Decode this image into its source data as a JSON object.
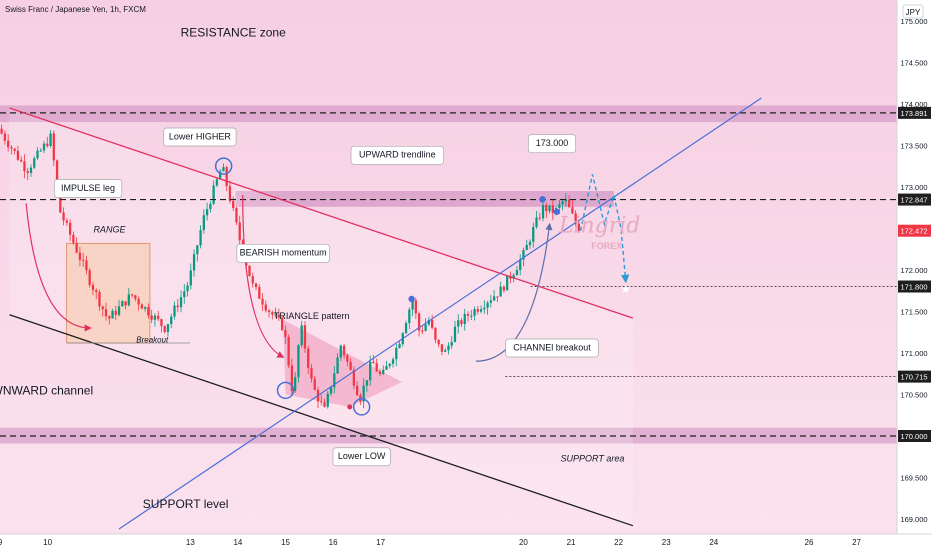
{
  "symbol_title": "Swiss Franc / Japanese Yen, 1h, FXCM",
  "currency": "JPY",
  "chart_data": {
    "type": "candlestick",
    "y_range": [
      168.82,
      175.25
    ],
    "x_range": [
      9.0,
      27.85
    ],
    "x_ticks": [
      {
        "v": 9,
        "label": "9"
      },
      {
        "v": 10,
        "label": "10"
      },
      {
        "v": 13,
        "label": "13"
      },
      {
        "v": 14,
        "label": "14"
      },
      {
        "v": 15,
        "label": "15"
      },
      {
        "v": 16,
        "label": "16"
      },
      {
        "v": 17,
        "label": "17"
      },
      {
        "v": 20,
        "label": "20"
      },
      {
        "v": 21,
        "label": "21"
      },
      {
        "v": 22,
        "label": "22"
      },
      {
        "v": 23,
        "label": "23"
      },
      {
        "v": 24,
        "label": "24"
      },
      {
        "v": 26,
        "label": "26"
      },
      {
        "v": 27,
        "label": "27"
      }
    ],
    "y_ticks": [
      {
        "v": 175.0,
        "label": "175.000"
      },
      {
        "v": 174.5,
        "label": "174.500"
      },
      {
        "v": 174.0,
        "label": "174.000"
      },
      {
        "v": 173.5,
        "label": "173.500"
      },
      {
        "v": 173.0,
        "label": "173.000"
      },
      {
        "v": 172.0,
        "label": "172.000"
      },
      {
        "v": 171.5,
        "label": "171.500"
      },
      {
        "v": 171.0,
        "label": "171.000"
      },
      {
        "v": 170.5,
        "label": "170.500"
      },
      {
        "v": 169.5,
        "label": "169.500"
      },
      {
        "v": 169.0,
        "label": "169.000"
      }
    ],
    "price_tags": [
      {
        "v": 173.891,
        "label": "173.891",
        "bg": "#1f1f1f",
        "fg": "#ffffff"
      },
      {
        "v": 172.847,
        "label": "172.847",
        "bg": "#1f1f1f",
        "fg": "#ffffff"
      },
      {
        "v": 172.472,
        "label": "172.472",
        "bg": "#f23645",
        "fg": "#ffffff"
      },
      {
        "v": 171.8,
        "label": "171.800",
        "bg": "#1f1f1f",
        "fg": "#ffffff"
      },
      {
        "v": 170.715,
        "label": "170.715",
        "bg": "#1f1f1f",
        "fg": "#ffffff"
      },
      {
        "v": 170.0,
        "label": "170.000",
        "bg": "#1f1f1f",
        "fg": "#ffffff"
      }
    ],
    "path_points": [
      [
        9.0,
        173.7
      ],
      [
        9.6,
        173.2
      ],
      [
        10.1,
        173.6
      ],
      [
        10.3,
        172.7
      ],
      [
        10.6,
        172.3
      ],
      [
        10.9,
        171.9
      ],
      [
        11.3,
        171.4
      ],
      [
        11.8,
        171.7
      ],
      [
        12.5,
        171.3
      ],
      [
        13.0,
        171.85
      ],
      [
        13.3,
        172.6
      ],
      [
        13.55,
        173.0
      ],
      [
        13.7,
        173.25
      ],
      [
        13.85,
        172.9
      ],
      [
        14.1,
        172.3
      ],
      [
        14.35,
        171.8
      ],
      [
        14.7,
        171.5
      ],
      [
        15.0,
        171.3
      ],
      [
        15.2,
        170.45
      ],
      [
        15.35,
        171.35
      ],
      [
        15.6,
        170.6
      ],
      [
        15.85,
        170.3
      ],
      [
        16.05,
        170.75
      ],
      [
        16.2,
        171.1
      ],
      [
        16.45,
        170.7
      ],
      [
        16.6,
        170.45
      ],
      [
        16.85,
        170.9
      ],
      [
        17.05,
        170.7
      ],
      [
        17.4,
        171.1
      ],
      [
        17.7,
        171.65
      ],
      [
        17.85,
        171.25
      ],
      [
        18.05,
        171.4
      ],
      [
        18.2,
        171.1
      ],
      [
        18.4,
        171.0
      ],
      [
        18.6,
        171.3
      ],
      [
        18.85,
        171.45
      ],
      [
        19.2,
        171.6
      ],
      [
        19.55,
        171.75
      ],
      [
        19.85,
        172.0
      ],
      [
        20.05,
        172.2
      ],
      [
        20.25,
        172.5
      ],
      [
        20.45,
        172.75
      ],
      [
        20.7,
        172.7
      ],
      [
        20.9,
        172.85
      ],
      [
        21.1,
        172.6
      ],
      [
        21.2,
        172.472
      ]
    ],
    "candle_count": 178,
    "projection": [
      [
        21.2,
        172.472
      ],
      [
        21.45,
        173.15
      ],
      [
        21.7,
        172.55
      ],
      [
        21.9,
        172.9
      ],
      [
        22.05,
        172.5
      ],
      [
        22.15,
        171.86
      ]
    ],
    "resistance_zone": [
      173.78,
      173.98
    ],
    "mid_band": [
      172.76,
      172.95
    ],
    "support_zone": [
      169.91,
      170.1
    ],
    "dashed_levels": [
      173.891,
      172.847,
      170.0
    ],
    "dotted_levels": [
      {
        "v": 171.8,
        "x_from": 20.15
      },
      {
        "v": 170.715,
        "x_from": 19.62
      }
    ],
    "downward_channel": {
      "upper": [
        [
          9.2,
          173.95
        ],
        [
          22.3,
          171.42
        ]
      ],
      "lower": [
        [
          9.2,
          171.46
        ],
        [
          22.3,
          168.92
        ]
      ]
    },
    "upward_trendline": [
      [
        11.5,
        168.88
      ],
      [
        25.0,
        174.07
      ]
    ],
    "range_box": {
      "x": [
        10.4,
        12.15
      ],
      "y": [
        171.12,
        172.32
      ]
    },
    "triangle": {
      "pts": [
        [
          14.95,
          171.4
        ],
        [
          17.45,
          170.65
        ],
        [
          16.35,
          170.35
        ],
        [
          15.0,
          170.5
        ]
      ]
    },
    "circles": [
      [
        13.7,
        173.25
      ],
      [
        15.0,
        170.55
      ],
      [
        16.6,
        170.35
      ]
    ],
    "dots": [
      [
        17.65,
        171.65
      ],
      [
        20.4,
        172.85
      ]
    ],
    "breakout_dots": [
      [
        20.7,
        172.7
      ]
    ],
    "annotations": [
      {
        "text": "RESISTANCE zone",
        "x": 13.9,
        "y": 174.85,
        "boxed": false,
        "size": 12
      },
      {
        "text": "Lower HIGHER",
        "x": 13.2,
        "y": 173.6,
        "boxed": true,
        "size": 9
      },
      {
        "text": "UPWARD trendline",
        "x": 17.35,
        "y": 173.38,
        "boxed": true,
        "size": 9
      },
      {
        "text": "173.000",
        "x": 20.6,
        "y": 173.52,
        "boxed": true,
        "size": 9
      },
      {
        "text": "IMPULSE leg",
        "x": 10.85,
        "y": 172.98,
        "boxed": true,
        "size": 9
      },
      {
        "text": "RANGE",
        "x": 11.3,
        "y": 172.48,
        "boxed": false,
        "size": 9,
        "italic": true
      },
      {
        "text": "BEARISH momentum",
        "x": 14.95,
        "y": 172.2,
        "boxed": true,
        "size": 9
      },
      {
        "text": "TRIANGLE pattern",
        "x": 15.55,
        "y": 171.44,
        "boxed": false,
        "size": 9
      },
      {
        "text": "Breakout",
        "x": 12.2,
        "y": 171.15,
        "boxed": false,
        "size": 8,
        "italic": true
      },
      {
        "text": "CHANNEl breakout",
        "x": 20.6,
        "y": 171.06,
        "boxed": true,
        "size": 9
      },
      {
        "text": "DOWNWARD channel",
        "x": 9.7,
        "y": 170.54,
        "boxed": false,
        "size": 12
      },
      {
        "text": "Lower LOW",
        "x": 16.6,
        "y": 169.75,
        "boxed": true,
        "size": 9
      },
      {
        "text": "SUPPORT area",
        "x": 21.45,
        "y": 169.72,
        "boxed": false,
        "size": 9,
        "italic": true
      },
      {
        "text": "SUPPORT level",
        "x": 12.9,
        "y": 169.17,
        "boxed": false,
        "size": 12
      }
    ],
    "watermark": {
      "text": "Lingrid",
      "sub": "FOREX"
    },
    "colors": {
      "bull": "#089981",
      "bear": "#f23645",
      "accent": "#2962ff",
      "channel": "#e0315f"
    }
  }
}
